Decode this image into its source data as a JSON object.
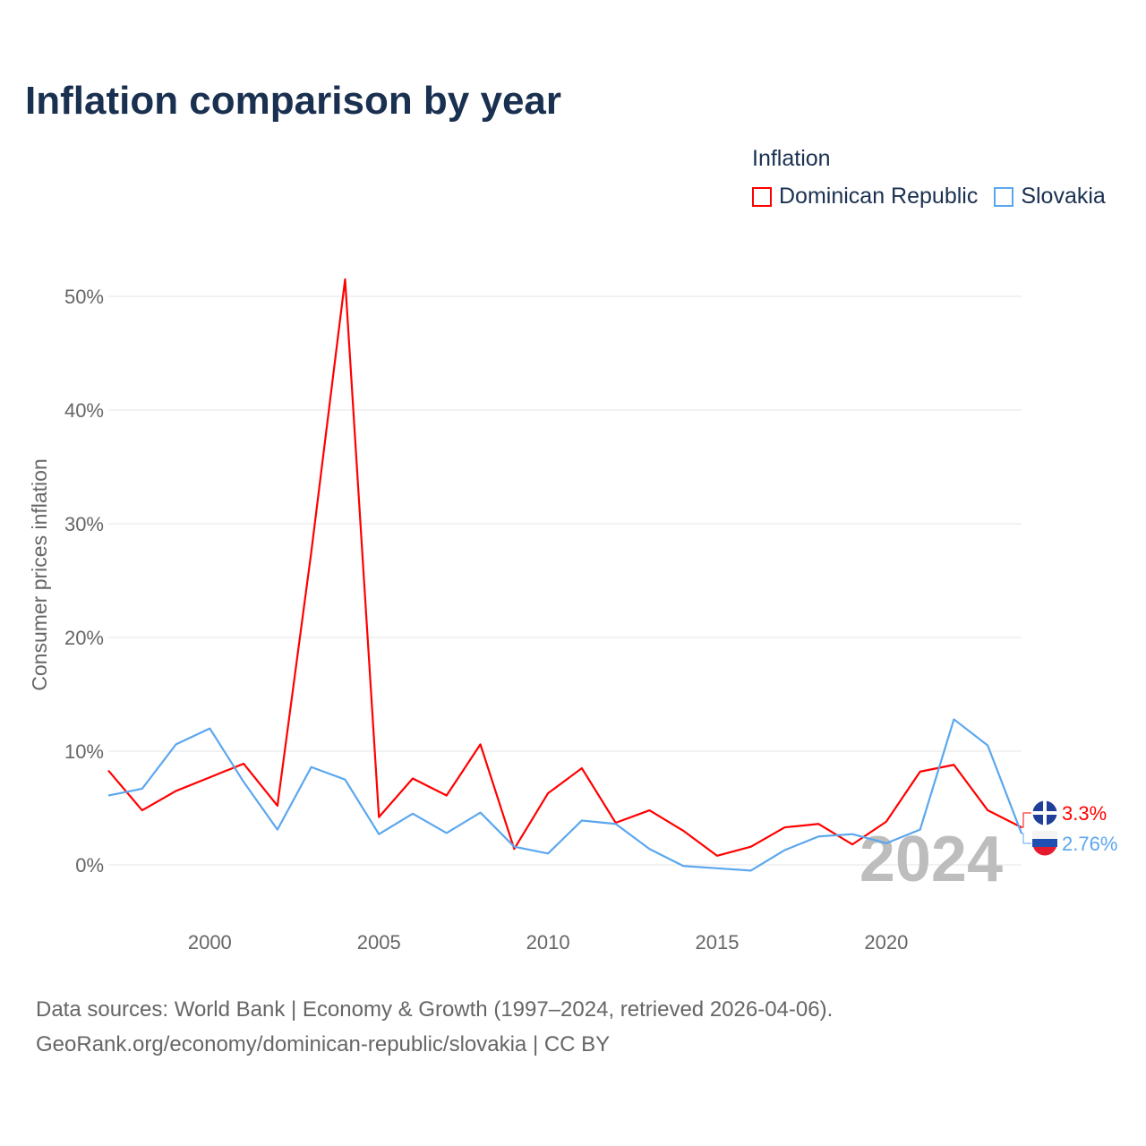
{
  "chart_data": {
    "type": "line",
    "title": "Inflation comparison by year",
    "legend_title": "Inflation",
    "legend_placement": "top-right",
    "xlabel": "",
    "ylabel": "Consumer prices inflation",
    "xlim": [
      1997,
      2024
    ],
    "ylim": [
      -4,
      52
    ],
    "x_ticks": [
      2000,
      2005,
      2010,
      2015,
      2020
    ],
    "y_ticks": [
      0,
      10,
      20,
      30,
      40,
      50
    ],
    "y_tick_labels": [
      "0%",
      "10%",
      "20%",
      "30%",
      "40%",
      "50%"
    ],
    "grid": true,
    "year_watermark": "2024",
    "x": [
      1997,
      1998,
      1999,
      2000,
      2001,
      2002,
      2003,
      2004,
      2005,
      2006,
      2007,
      2008,
      2009,
      2010,
      2011,
      2012,
      2013,
      2014,
      2015,
      2016,
      2017,
      2018,
      2019,
      2020,
      2021,
      2022,
      2023,
      2024
    ],
    "series": [
      {
        "name": "Dominican Republic",
        "color": "#ff0000",
        "end_label": "3.3%",
        "values": [
          8.3,
          4.8,
          6.5,
          7.7,
          8.9,
          5.2,
          27.5,
          51.5,
          4.2,
          7.6,
          6.1,
          10.6,
          1.4,
          6.3,
          8.5,
          3.7,
          4.8,
          3.0,
          0.8,
          1.6,
          3.3,
          3.6,
          1.8,
          3.8,
          8.2,
          8.8,
          4.8,
          3.3
        ]
      },
      {
        "name": "Slovakia",
        "color": "#5ba7ee",
        "end_label": "2.76%",
        "values": [
          6.1,
          6.7,
          10.6,
          12.0,
          7.3,
          3.1,
          8.6,
          7.5,
          2.7,
          4.5,
          2.8,
          4.6,
          1.6,
          1.0,
          3.9,
          3.6,
          1.4,
          -0.1,
          -0.3,
          -0.5,
          1.3,
          2.5,
          2.7,
          1.9,
          3.1,
          12.8,
          10.5,
          2.76
        ]
      }
    ]
  },
  "source": {
    "line1": "Data sources: World Bank | Economy & Growth (1997–2024, retrieved 2026-04-06).",
    "line2": "GeoRank.org/economy/dominican-republic/slovakia | CC BY"
  }
}
